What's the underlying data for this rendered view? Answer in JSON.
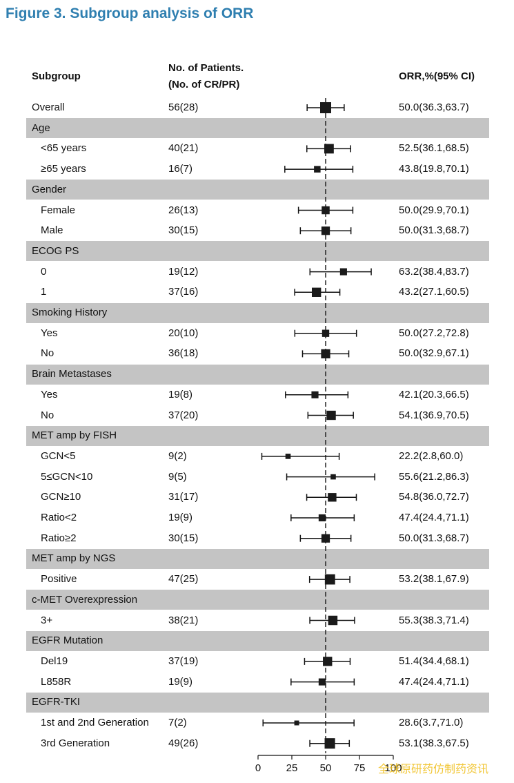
{
  "figure_title": "Figure 3. Subgroup analysis of ORR",
  "headers": {
    "subgroup": "Subgroup",
    "patients_line1": "No. of Patients.",
    "patients_line2": "(No. of CR/PR)",
    "orr": "ORR,%(95% CI)"
  },
  "watermark": "全球原研药仿制药资讯",
  "chart_data": {
    "type": "forest",
    "xlabel": "",
    "xlim": [
      0,
      100
    ],
    "xticks": [
      0,
      25,
      50,
      75,
      100
    ],
    "xtick_labels": [
      "0",
      "25",
      "50",
      "75",
      "100"
    ],
    "reference_line": 50,
    "rows": [
      {
        "kind": "data",
        "label": "Overall",
        "indent": false,
        "n": "56(28)",
        "orr_text": "50.0(36.3,63.7)",
        "est": 50.0,
        "lo": 36.3,
        "hi": 63.7,
        "weight": 56
      },
      {
        "kind": "group",
        "label": "Age"
      },
      {
        "kind": "data",
        "label": "<65 years",
        "indent": true,
        "n": "40(21)",
        "orr_text": "52.5(36.1,68.5)",
        "est": 52.5,
        "lo": 36.1,
        "hi": 68.5,
        "weight": 40
      },
      {
        "kind": "data",
        "label": "≥65 years",
        "indent": true,
        "n": "16(7)",
        "orr_text": "43.8(19.8,70.1)",
        "est": 43.8,
        "lo": 19.8,
        "hi": 70.1,
        "weight": 16
      },
      {
        "kind": "group",
        "label": "Gender"
      },
      {
        "kind": "data",
        "label": "Female",
        "indent": true,
        "n": "26(13)",
        "orr_text": "50.0(29.9,70.1)",
        "est": 50.0,
        "lo": 29.9,
        "hi": 70.1,
        "weight": 26
      },
      {
        "kind": "data",
        "label": "Male",
        "indent": true,
        "n": "30(15)",
        "orr_text": "50.0(31.3,68.7)",
        "est": 50.0,
        "lo": 31.3,
        "hi": 68.7,
        "weight": 30
      },
      {
        "kind": "group",
        "label": "ECOG PS"
      },
      {
        "kind": "data",
        "label": "0",
        "indent": true,
        "n": "19(12)",
        "orr_text": "63.2(38.4,83.7)",
        "est": 63.2,
        "lo": 38.4,
        "hi": 83.7,
        "weight": 19
      },
      {
        "kind": "data",
        "label": "1",
        "indent": true,
        "n": "37(16)",
        "orr_text": "43.2(27.1,60.5)",
        "est": 43.2,
        "lo": 27.1,
        "hi": 60.5,
        "weight": 37
      },
      {
        "kind": "group",
        "label": "Smoking History"
      },
      {
        "kind": "data",
        "label": "Yes",
        "indent": true,
        "n": "20(10)",
        "orr_text": "50.0(27.2,72.8)",
        "est": 50.0,
        "lo": 27.2,
        "hi": 72.8,
        "weight": 20
      },
      {
        "kind": "data",
        "label": "No",
        "indent": true,
        "n": "36(18)",
        "orr_text": "50.0(32.9,67.1)",
        "est": 50.0,
        "lo": 32.9,
        "hi": 67.1,
        "weight": 36
      },
      {
        "kind": "group",
        "label": "Brain Metastases"
      },
      {
        "kind": "data",
        "label": "Yes",
        "indent": true,
        "n": "19(8)",
        "orr_text": "42.1(20.3,66.5)",
        "est": 42.1,
        "lo": 20.3,
        "hi": 66.5,
        "weight": 19
      },
      {
        "kind": "data",
        "label": "No",
        "indent": true,
        "n": "37(20)",
        "orr_text": "54.1(36.9,70.5)",
        "est": 54.1,
        "lo": 36.9,
        "hi": 70.5,
        "weight": 37
      },
      {
        "kind": "group",
        "label": "MET amp by FISH"
      },
      {
        "kind": "data",
        "label": "GCN<5",
        "indent": true,
        "n": "9(2)",
        "orr_text": "22.2(2.8,60.0)",
        "est": 22.2,
        "lo": 2.8,
        "hi": 60.0,
        "weight": 9
      },
      {
        "kind": "data",
        "label": "5≤GCN<10",
        "indent": true,
        "n": "9(5)",
        "orr_text": "55.6(21.2,86.3)",
        "est": 55.6,
        "lo": 21.2,
        "hi": 86.3,
        "weight": 9
      },
      {
        "kind": "data",
        "label": "GCN≥10",
        "indent": true,
        "n": "31(17)",
        "orr_text": "54.8(36.0,72.7)",
        "est": 54.8,
        "lo": 36.0,
        "hi": 72.7,
        "weight": 31
      },
      {
        "kind": "data",
        "label": "Ratio<2",
        "indent": true,
        "n": "19(9)",
        "orr_text": "47.4(24.4,71.1)",
        "est": 47.4,
        "lo": 24.4,
        "hi": 71.1,
        "weight": 19
      },
      {
        "kind": "data",
        "label": "Ratio≥2",
        "indent": true,
        "n": "30(15)",
        "orr_text": "50.0(31.3,68.7)",
        "est": 50.0,
        "lo": 31.3,
        "hi": 68.7,
        "weight": 30
      },
      {
        "kind": "group",
        "label": "MET amp by NGS"
      },
      {
        "kind": "data",
        "label": "Positive",
        "indent": true,
        "n": "47(25)",
        "orr_text": "53.2(38.1,67.9)",
        "est": 53.2,
        "lo": 38.1,
        "hi": 67.9,
        "weight": 47
      },
      {
        "kind": "group",
        "label": "c-MET Overexpression"
      },
      {
        "kind": "data",
        "label": "3+",
        "indent": true,
        "n": "38(21)",
        "orr_text": "55.3(38.3,71.4)",
        "est": 55.3,
        "lo": 38.3,
        "hi": 71.4,
        "weight": 38
      },
      {
        "kind": "group",
        "label": "EGFR Mutation"
      },
      {
        "kind": "data",
        "label": "Del19",
        "indent": true,
        "n": "37(19)",
        "orr_text": "51.4(34.4,68.1)",
        "est": 51.4,
        "lo": 34.4,
        "hi": 68.1,
        "weight": 37
      },
      {
        "kind": "data",
        "label": "L858R",
        "indent": true,
        "n": "19(9)",
        "orr_text": "47.4(24.4,71.1)",
        "est": 47.4,
        "lo": 24.4,
        "hi": 71.1,
        "weight": 19
      },
      {
        "kind": "group",
        "label": "EGFR-TKI"
      },
      {
        "kind": "data",
        "label": "1st and 2nd Generation",
        "indent": true,
        "n": "7(2)",
        "orr_text": "28.6(3.7,71.0)",
        "est": 28.6,
        "lo": 3.7,
        "hi": 71.0,
        "weight": 7
      },
      {
        "kind": "data",
        "label": "3rd Generation",
        "indent": true,
        "n": "49(26)",
        "orr_text": "53.1(38.3,67.5)",
        "est": 53.1,
        "lo": 38.3,
        "hi": 67.5,
        "weight": 49
      }
    ]
  }
}
